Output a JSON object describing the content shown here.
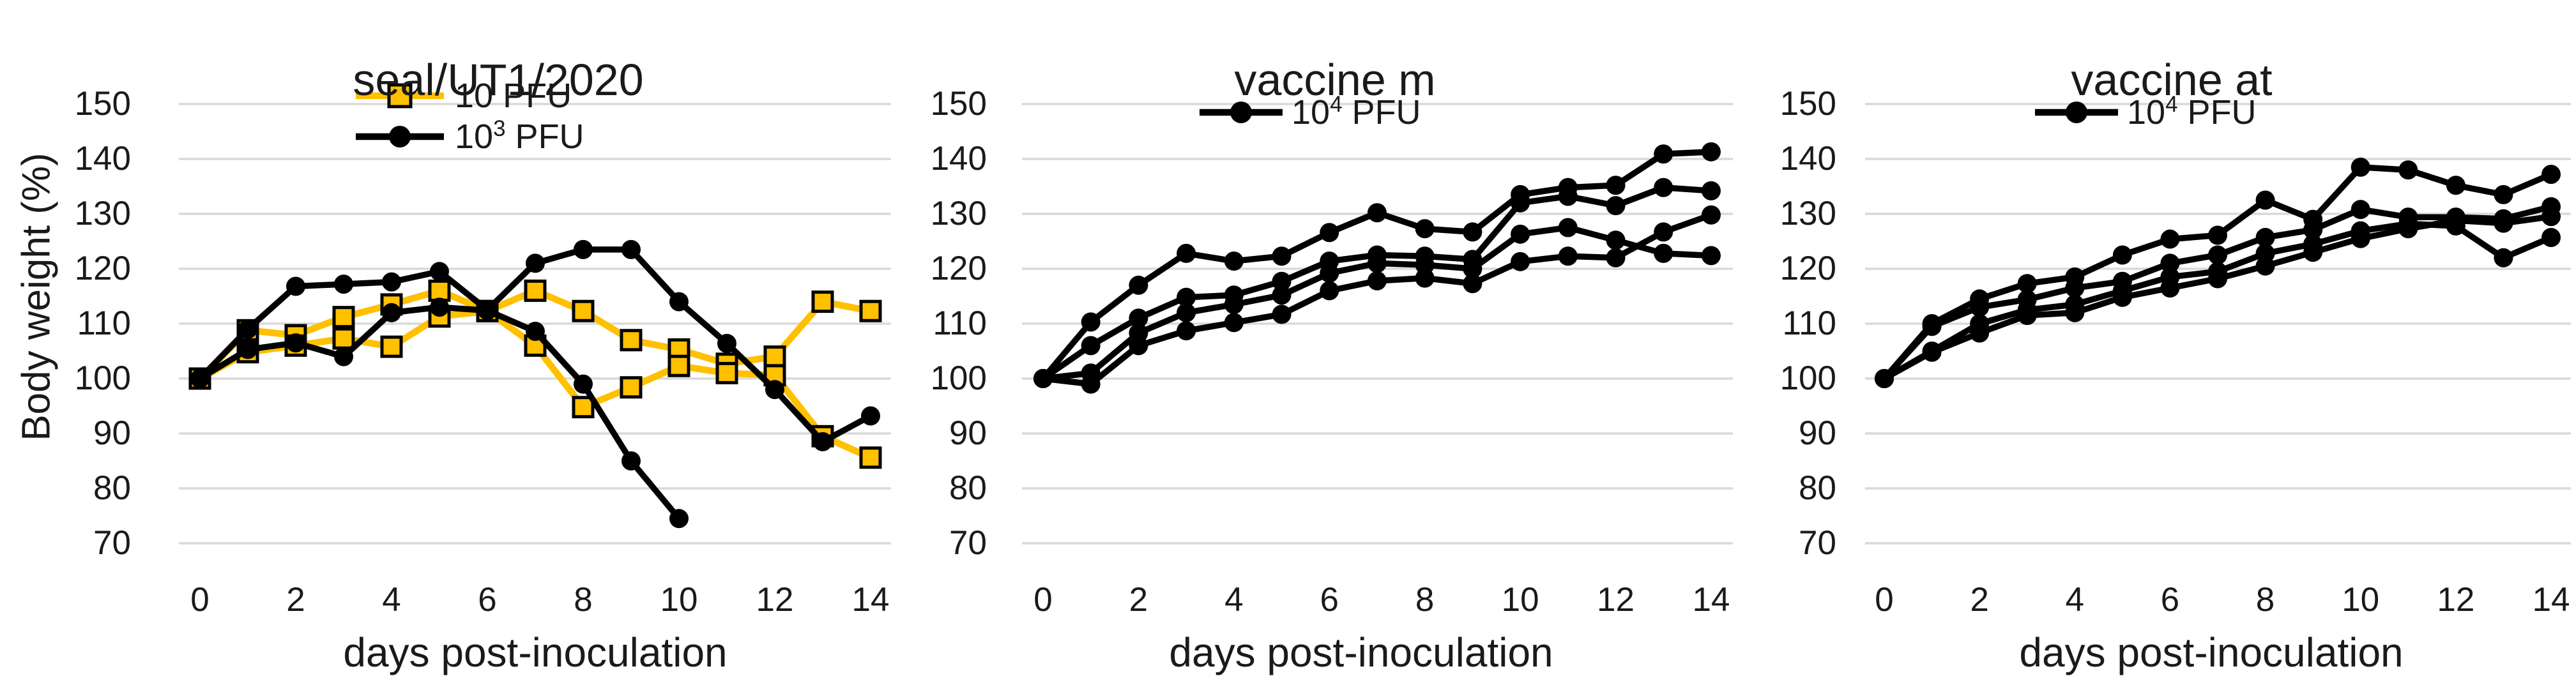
{
  "figure": {
    "y_axis_title": "Body weight (%)",
    "x_axis_title": "days post-inoculation"
  },
  "colors": {
    "orange": "#FFC000",
    "black": "#000000",
    "gridline": "#D9D9D9",
    "text": "#1a1a1a",
    "background": "#ffffff"
  },
  "chart_data": [
    {
      "type": "line",
      "title": "seal/UT1/2020",
      "xlabel": "days post-inoculation",
      "ylabel": "Body weight (%)",
      "ylim": [
        70,
        150
      ],
      "grid": true,
      "legend_position": "inside-top-left",
      "yticks": [
        "150",
        "140",
        "130",
        "120",
        "110",
        "100",
        "90",
        "80",
        "70"
      ],
      "xticks": [
        "0",
        "2",
        "4",
        "6",
        "8",
        "10",
        "12",
        "14"
      ],
      "x": [
        0,
        1,
        2,
        3,
        4,
        5,
        6,
        7,
        8,
        9,
        10,
        11,
        12,
        13,
        14
      ],
      "legend": [
        {
          "pre": "10",
          "sup": "",
          "post": " PFU",
          "marker": "square",
          "color": "#FFC000"
        },
        {
          "pre": "10",
          "sup": "3",
          "post": " PFU",
          "marker": "circle",
          "color": "#000000"
        }
      ],
      "series": [
        {
          "name": "10 PFU animal 1",
          "marker": "square",
          "color": "#FFC000",
          "values": [
            100,
            108.8,
            107.9,
            111.2,
            113.5,
            116,
            112.3,
            116,
            112.3,
            107,
            105.3,
            102.7,
            104,
            114,
            112.3
          ]
        },
        {
          "name": "10 PFU animal 2",
          "marker": "square",
          "color": "#FFC000",
          "values": [
            100,
            104.8,
            106,
            107.3,
            105.8,
            111.3,
            112.3,
            106,
            94.8,
            98.4,
            102.3,
            101,
            100.6,
            89.5,
            85.6
          ]
        },
        {
          "name": "10^3 PFU animal 1",
          "marker": "circle",
          "color": "#000000",
          "values": [
            100,
            109,
            116.8,
            117.2,
            117.6,
            119.5,
            112.5,
            121,
            123.5,
            123.5,
            114,
            106.4,
            98,
            88.5,
            93.2
          ]
        },
        {
          "name": "10^3 PFU animal 2",
          "marker": "circle",
          "color": "#000000",
          "values": [
            100,
            105.3,
            106.5,
            104,
            112,
            113,
            112.4,
            108.6,
            99,
            85,
            74.5,
            null,
            null,
            null,
            null
          ]
        }
      ]
    },
    {
      "type": "line",
      "title": "vaccine m",
      "xlabel": "days post-inoculation",
      "ylabel": "Body weight (%)",
      "ylim": [
        70,
        150
      ],
      "grid": true,
      "legend_position": "inside-top-left",
      "yticks": [
        "150",
        "140",
        "130",
        "120",
        "110",
        "100",
        "90",
        "80",
        "70"
      ],
      "xticks": [
        "0",
        "2",
        "4",
        "6",
        "8",
        "10",
        "12",
        "14"
      ],
      "x": [
        0,
        1,
        2,
        3,
        4,
        5,
        6,
        7,
        8,
        9,
        10,
        11,
        12,
        13,
        14
      ],
      "legend": [
        {
          "pre": "10",
          "sup": "4",
          "post": " PFU",
          "marker": "circle",
          "color": "#000000"
        }
      ],
      "series": [
        {
          "name": "10^4 PFU animal 1",
          "marker": "circle",
          "color": "#000000",
          "values": [
            100,
            110.3,
            117,
            122.8,
            121.4,
            122.3,
            126.6,
            130.2,
            127.3,
            126.7,
            133.5,
            134.8,
            135.2,
            140.9,
            141.3
          ]
        },
        {
          "name": "10^4 PFU animal 2",
          "marker": "circle",
          "color": "#000000",
          "values": [
            100,
            106,
            111,
            114.8,
            115.2,
            117.7,
            121.4,
            122.5,
            122.3,
            121.7,
            132,
            133.2,
            131.5,
            134.8,
            134.2
          ]
        },
        {
          "name": "10^4 PFU animal 3",
          "marker": "circle",
          "color": "#000000",
          "values": [
            100,
            101,
            108.3,
            112,
            113.5,
            115.2,
            119.2,
            121,
            120.7,
            120,
            126.3,
            127.5,
            125.2,
            122.8,
            122.4
          ]
        },
        {
          "name": "10^4 PFU animal 4",
          "marker": "circle",
          "color": "#000000",
          "values": [
            100,
            99,
            106,
            108.7,
            110.2,
            111.7,
            116,
            117.8,
            118.3,
            117.3,
            121.3,
            122.3,
            122,
            126.7,
            129.8
          ]
        }
      ]
    },
    {
      "type": "line",
      "title": "vaccine at",
      "xlabel": "days post-inoculation",
      "ylabel": "Body weight (%)",
      "ylim": [
        70,
        150
      ],
      "grid": true,
      "legend_position": "inside-top-left",
      "yticks": [
        "150",
        "140",
        "130",
        "120",
        "110",
        "100",
        "90",
        "80",
        "70"
      ],
      "xticks": [
        "0",
        "2",
        "4",
        "6",
        "8",
        "10",
        "12",
        "14"
      ],
      "x": [
        0,
        1,
        2,
        3,
        4,
        5,
        6,
        7,
        8,
        9,
        10,
        11,
        12,
        13,
        14
      ],
      "legend": [
        {
          "pre": "10",
          "sup": "4",
          "post": " PFU",
          "marker": "circle",
          "color": "#000000"
        }
      ],
      "series": [
        {
          "name": "10^4 PFU animal 1",
          "marker": "circle",
          "color": "#000000",
          "values": [
            100,
            110,
            114.5,
            117.3,
            118.5,
            122.5,
            125.4,
            126.1,
            132.5,
            129,
            138.5,
            138,
            135.2,
            133.5,
            137.2
          ]
        },
        {
          "name": "10^4 PFU animal 2",
          "marker": "circle",
          "color": "#000000",
          "values": [
            100,
            109.5,
            113,
            114.4,
            116.5,
            117.7,
            121,
            122.5,
            125.7,
            127.1,
            130.8,
            129.4,
            129.4,
            129.1,
            131.3
          ]
        },
        {
          "name": "10^4 PFU animal 3",
          "marker": "circle",
          "color": "#000000",
          "values": [
            100,
            105,
            110,
            112.5,
            113.5,
            116,
            118.5,
            119.5,
            122.8,
            124.5,
            126.9,
            128.2,
            127.8,
            122,
            125.7
          ]
        },
        {
          "name": "10^4 PFU animal 4",
          "marker": "circle",
          "color": "#000000",
          "values": [
            100,
            104.8,
            108.3,
            111.5,
            112,
            114.8,
            116.5,
            118.2,
            120.5,
            123,
            125.5,
            127.3,
            128.8,
            128.3,
            129.5
          ]
        }
      ]
    }
  ]
}
